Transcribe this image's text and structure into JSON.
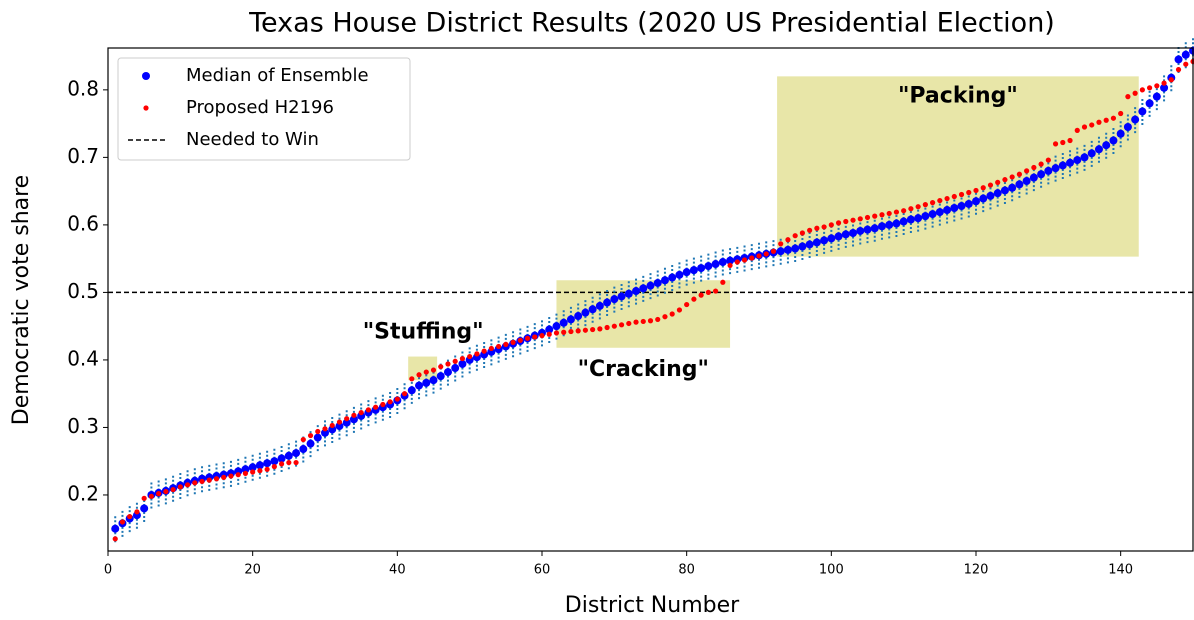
{
  "chart_data": {
    "type": "scatter",
    "title": "Texas House District Results  (2020 US Presidential Election)",
    "x_label": "District Number",
    "y_label": "Democratic vote share",
    "xlim": [
      0,
      150
    ],
    "ylim": [
      0.117,
      0.862
    ],
    "xticks": [
      0,
      20,
      40,
      60,
      80,
      100,
      120,
      140
    ],
    "yticks": [
      0.2,
      0.3,
      0.4,
      0.5,
      0.6,
      0.7,
      0.8
    ],
    "legend": "upper left",
    "threshold": 0.5,
    "threshold_label": "Needed to Win",
    "x": [
      1,
      2,
      3,
      4,
      5,
      6,
      7,
      8,
      9,
      10,
      11,
      12,
      13,
      14,
      15,
      16,
      17,
      18,
      19,
      20,
      21,
      22,
      23,
      24,
      25,
      26,
      27,
      28,
      29,
      30,
      31,
      32,
      33,
      34,
      35,
      36,
      37,
      38,
      39,
      40,
      41,
      42,
      43,
      44,
      45,
      46,
      47,
      48,
      49,
      50,
      51,
      52,
      53,
      54,
      55,
      56,
      57,
      58,
      59,
      60,
      61,
      62,
      63,
      64,
      65,
      66,
      67,
      68,
      69,
      70,
      71,
      72,
      73,
      74,
      75,
      76,
      77,
      78,
      79,
      80,
      81,
      82,
      83,
      84,
      85,
      86,
      87,
      88,
      89,
      90,
      91,
      92,
      93,
      94,
      95,
      96,
      97,
      98,
      99,
      100,
      101,
      102,
      103,
      104,
      105,
      106,
      107,
      108,
      109,
      110,
      111,
      112,
      113,
      114,
      115,
      116,
      117,
      118,
      119,
      120,
      121,
      122,
      123,
      124,
      125,
      126,
      127,
      128,
      129,
      130,
      131,
      132,
      133,
      134,
      135,
      136,
      137,
      138,
      139,
      140,
      141,
      142,
      143,
      144,
      145,
      146,
      147,
      148,
      149,
      150
    ],
    "series": [
      {
        "name": "Median of Ensemble",
        "color": "#0000ff",
        "error_color": "#1f77b4",
        "error": 0.02,
        "values": [
          0.15,
          0.158,
          0.165,
          0.17,
          0.18,
          0.2,
          0.203,
          0.206,
          0.21,
          0.214,
          0.218,
          0.221,
          0.224,
          0.226,
          0.228,
          0.23,
          0.232,
          0.235,
          0.238,
          0.241,
          0.244,
          0.247,
          0.25,
          0.254,
          0.258,
          0.262,
          0.268,
          0.276,
          0.285,
          0.292,
          0.297,
          0.302,
          0.307,
          0.312,
          0.317,
          0.322,
          0.326,
          0.33,
          0.334,
          0.34,
          0.347,
          0.355,
          0.362,
          0.366,
          0.37,
          0.376,
          0.382,
          0.388,
          0.394,
          0.4,
          0.404,
          0.408,
          0.412,
          0.416,
          0.42,
          0.424,
          0.428,
          0.432,
          0.436,
          0.44,
          0.445,
          0.45,
          0.455,
          0.46,
          0.465,
          0.47,
          0.475,
          0.48,
          0.485,
          0.49,
          0.494,
          0.498,
          0.502,
          0.506,
          0.51,
          0.514,
          0.518,
          0.522,
          0.526,
          0.53,
          0.533,
          0.536,
          0.539,
          0.542,
          0.545,
          0.547,
          0.549,
          0.551,
          0.553,
          0.555,
          0.557,
          0.559,
          0.561,
          0.563,
          0.565,
          0.568,
          0.571,
          0.574,
          0.577,
          0.58,
          0.583,
          0.586,
          0.588,
          0.591,
          0.593,
          0.595,
          0.598,
          0.6,
          0.602,
          0.605,
          0.608,
          0.61,
          0.613,
          0.616,
          0.619,
          0.622,
          0.625,
          0.628,
          0.631,
          0.635,
          0.639,
          0.643,
          0.647,
          0.651,
          0.655,
          0.66,
          0.665,
          0.67,
          0.675,
          0.68,
          0.684,
          0.688,
          0.692,
          0.696,
          0.7,
          0.706,
          0.712,
          0.718,
          0.725,
          0.735,
          0.745,
          0.756,
          0.768,
          0.78,
          0.79,
          0.803,
          0.818,
          0.845,
          0.852,
          0.858
        ]
      },
      {
        "name": "Proposed H2196",
        "color": "#ff0000",
        "values": [
          0.135,
          0.16,
          0.168,
          0.175,
          0.195,
          0.198,
          0.202,
          0.205,
          0.208,
          0.212,
          0.215,
          0.218,
          0.22,
          0.222,
          0.224,
          0.226,
          0.228,
          0.23,
          0.232,
          0.234,
          0.236,
          0.238,
          0.242,
          0.246,
          0.248,
          0.248,
          0.282,
          0.288,
          0.294,
          0.298,
          0.303,
          0.308,
          0.313,
          0.318,
          0.322,
          0.326,
          0.33,
          0.334,
          0.338,
          0.342,
          0.35,
          0.372,
          0.378,
          0.382,
          0.385,
          0.39,
          0.394,
          0.398,
          0.402,
          0.405,
          0.409,
          0.413,
          0.417,
          0.42,
          0.423,
          0.426,
          0.429,
          0.432,
          0.434,
          0.436,
          0.438,
          0.44,
          0.441,
          0.442,
          0.443,
          0.444,
          0.445,
          0.446,
          0.448,
          0.45,
          0.452,
          0.454,
          0.456,
          0.457,
          0.458,
          0.46,
          0.464,
          0.468,
          0.474,
          0.482,
          0.49,
          0.496,
          0.5,
          0.502,
          0.515,
          0.54,
          0.545,
          0.548,
          0.551,
          0.554,
          0.557,
          0.561,
          0.572,
          0.578,
          0.584,
          0.588,
          0.592,
          0.595,
          0.597,
          0.6,
          0.603,
          0.605,
          0.607,
          0.609,
          0.611,
          0.613,
          0.615,
          0.617,
          0.619,
          0.621,
          0.624,
          0.627,
          0.63,
          0.633,
          0.636,
          0.639,
          0.642,
          0.645,
          0.648,
          0.651,
          0.655,
          0.659,
          0.663,
          0.667,
          0.671,
          0.675,
          0.68,
          0.685,
          0.69,
          0.696,
          0.72,
          0.722,
          0.725,
          0.74,
          0.745,
          0.748,
          0.752,
          0.755,
          0.758,
          0.765,
          0.79,
          0.795,
          0.8,
          0.803,
          0.806,
          0.81,
          0.815,
          0.83,
          0.838,
          0.842
        ]
      }
    ],
    "highlights": [
      {
        "label": "\"Stuffing\"",
        "x": [
          41.5,
          45.5
        ],
        "y": [
          0.37,
          0.405
        ]
      },
      {
        "label": "\"Cracking\"",
        "x": [
          62,
          86
        ],
        "y": [
          0.418,
          0.518
        ]
      },
      {
        "label": "\"Packing\"",
        "x": [
          92.5,
          142.5
        ],
        "y": [
          0.553,
          0.82
        ]
      }
    ],
    "highlight_color": "#e8e6a8"
  }
}
